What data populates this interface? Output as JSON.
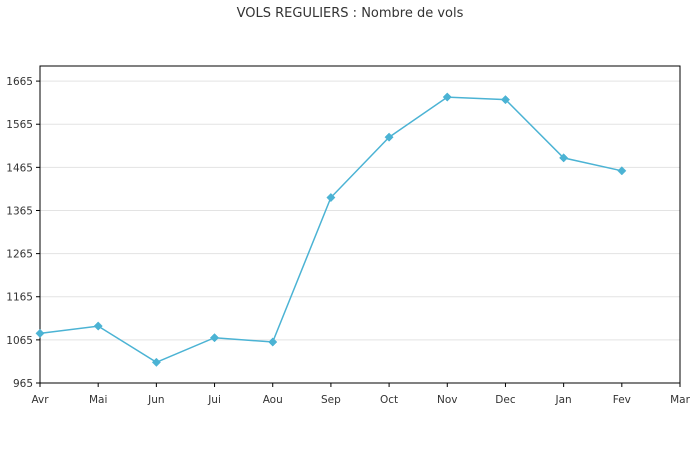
{
  "chart_data": {
    "type": "line",
    "title": "VOLS REGULIERS : Nombre de vols",
    "xlabel": "",
    "ylabel": "",
    "categories": [
      "Avr",
      "Mai",
      "Jun",
      "Jui",
      "Aou",
      "Sep",
      "Oct",
      "Nov",
      "Dec",
      "Jan",
      "Fev",
      "Mar"
    ],
    "series": [
      {
        "values": [
          1080,
          1097,
          1013,
          1070,
          1060,
          1395,
          1535,
          1628,
          1622,
          1487,
          1457,
          null
        ],
        "color": "#4bb3d4"
      }
    ],
    "ylim": [
      965,
      1700
    ],
    "yticks": [
      965,
      1065,
      1165,
      1265,
      1365,
      1465,
      1565,
      1665
    ],
    "grid": "horizontal",
    "legend": "none"
  }
}
